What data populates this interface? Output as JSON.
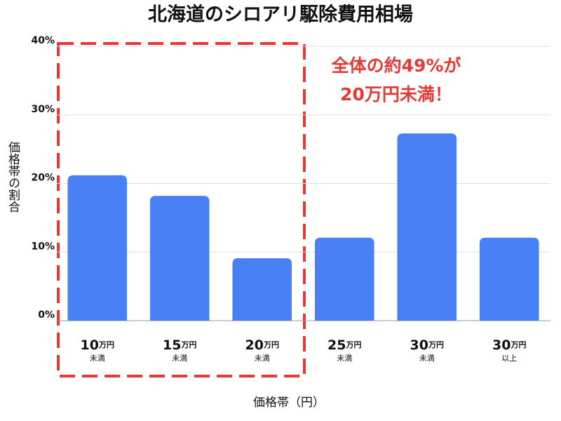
{
  "chart_data": {
    "type": "bar",
    "title": "北海道のシロアリ駆除費用相場",
    "categories": [
      {
        "amount": "10",
        "unit": "万円",
        "qualifier": "未満"
      },
      {
        "amount": "15",
        "unit": "万円",
        "qualifier": "未満"
      },
      {
        "amount": "20",
        "unit": "万円",
        "qualifier": "未満"
      },
      {
        "amount": "25",
        "unit": "万円",
        "qualifier": "未満"
      },
      {
        "amount": "30",
        "unit": "万円",
        "qualifier": "未満"
      },
      {
        "amount": "30",
        "unit": "万円",
        "qualifier": "以上"
      }
    ],
    "values": [
      21.2,
      18.2,
      9.1,
      12.1,
      27.3,
      12.1
    ],
    "color": "#4a80f5",
    "ylim": [
      0,
      40
    ],
    "yticks": [
      {
        "value": 0,
        "label": "0%"
      },
      {
        "value": 10,
        "label": "10%"
      },
      {
        "value": 20,
        "label": "20%"
      },
      {
        "value": 30,
        "label": "30%"
      },
      {
        "value": 40,
        "label": "40%"
      }
    ],
    "grid": true,
    "y_label": "価格帯の割合",
    "x_label": "価格帯（円）",
    "annotation": [
      "全体の約49%が",
      "20万円未満！"
    ]
  }
}
